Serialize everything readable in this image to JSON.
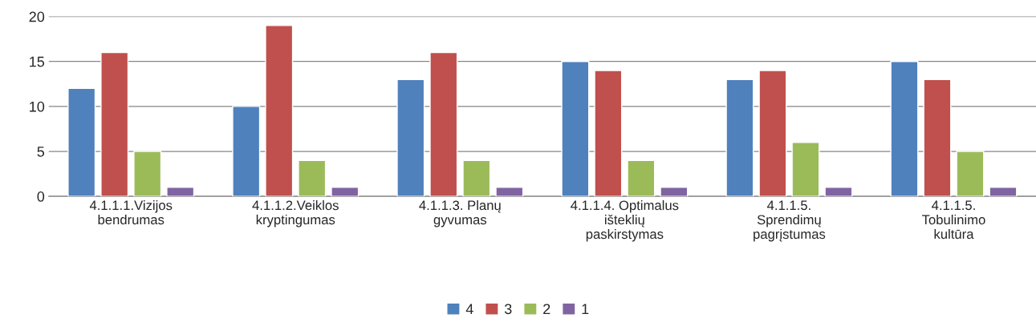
{
  "chart_data": {
    "type": "bar",
    "categories": [
      "4.1.1.1.Vizijos\nbendrumas",
      "4.1.1.2.Veiklos\nkryptingumas",
      "4.1.1.3. Planų\ngyvumas",
      "4.1.1.4. Optimalus\ništeklių\npaskirstymas",
      "4.1.1.5.\nSprendimų\npagrįstumas",
      "4.1.1.5.\nTobulinimo\nkultūra"
    ],
    "series": [
      {
        "name": "4",
        "color": "#4f81bd",
        "values": [
          12,
          10,
          13,
          15,
          13,
          15
        ]
      },
      {
        "name": "3",
        "color": "#c0504d",
        "values": [
          16,
          19,
          16,
          14,
          14,
          13
        ]
      },
      {
        "name": "2",
        "color": "#9bbb59",
        "values": [
          5,
          4,
          4,
          4,
          6,
          5
        ]
      },
      {
        "name": "1",
        "color": "#8064a2",
        "values": [
          1,
          1,
          1,
          1,
          1,
          1
        ]
      }
    ],
    "ylim": [
      0,
      20
    ],
    "yticks": [
      0,
      5,
      10,
      15,
      20
    ],
    "grid": "y",
    "legend": "bottom"
  }
}
